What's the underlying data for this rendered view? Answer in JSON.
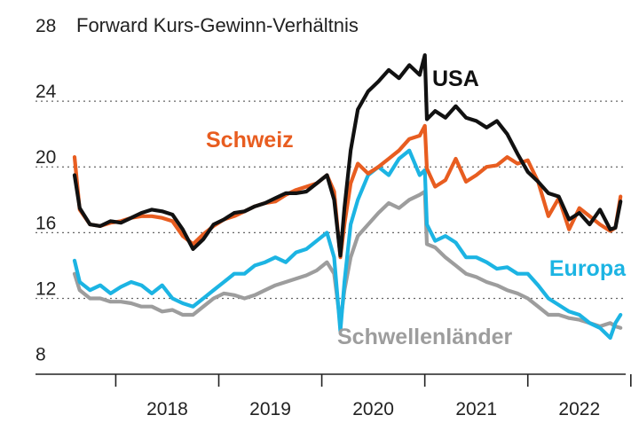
{
  "chart_data": {
    "type": "line",
    "title": "Forward Kurs-Gewinn-Verhältnis",
    "y_ticks": [
      "28",
      "24",
      "20",
      "16",
      "12",
      "8"
    ],
    "y_tick_values": [
      28,
      24,
      20,
      16,
      12,
      8
    ],
    "ylim": [
      8,
      28
    ],
    "xlim": [
      2017.6,
      2022.95
    ],
    "year_labels": [
      "2018",
      "2019",
      "2020",
      "2021",
      "2022"
    ],
    "year_label_values": [
      2018.5,
      2019.5,
      2020.5,
      2021.5,
      2022.5
    ],
    "year_boundaries": [
      2018,
      2019,
      2020,
      2021,
      2022,
      2023
    ],
    "grid": "dotted horizontal",
    "series": [
      {
        "name": "USA",
        "color": "#111111",
        "x": [
          2017.6,
          2017.65,
          2017.75,
          2017.85,
          2017.95,
          2018.05,
          2018.15,
          2018.25,
          2018.35,
          2018.45,
          2018.55,
          2018.65,
          2018.75,
          2018.85,
          2018.95,
          2019.05,
          2019.15,
          2019.25,
          2019.35,
          2019.45,
          2019.55,
          2019.65,
          2019.75,
          2019.85,
          2019.95,
          2020.05,
          2020.12,
          2020.18,
          2020.22,
          2020.28,
          2020.35,
          2020.45,
          2020.55,
          2020.65,
          2020.75,
          2020.85,
          2020.95,
          2021.0,
          2021.02,
          2021.1,
          2021.2,
          2021.3,
          2021.4,
          2021.5,
          2021.6,
          2021.7,
          2021.8,
          2021.9,
          2022.0,
          2022.1,
          2022.2,
          2022.3,
          2022.4,
          2022.5,
          2022.6,
          2022.7,
          2022.8,
          2022.85,
          2022.9
        ],
        "values": [
          19.5,
          17.5,
          16.5,
          16.4,
          16.7,
          16.6,
          16.9,
          17.2,
          17.4,
          17.3,
          17.1,
          16.2,
          15.0,
          15.6,
          16.5,
          16.8,
          17.2,
          17.3,
          17.6,
          17.8,
          18.1,
          18.4,
          18.4,
          18.5,
          19.0,
          19.5,
          18.0,
          14.6,
          17.5,
          21.0,
          23.5,
          24.6,
          25.2,
          25.9,
          25.4,
          26.2,
          25.6,
          26.8,
          22.9,
          23.4,
          23.0,
          23.7,
          23.0,
          22.8,
          22.4,
          22.8,
          22.0,
          20.8,
          19.7,
          19.1,
          18.4,
          18.2,
          16.8,
          17.2,
          16.5,
          17.4,
          16.2,
          16.3,
          17.9
        ]
      },
      {
        "name": "Schweiz",
        "color": "#e85d20",
        "x": [
          2017.6,
          2017.65,
          2017.75,
          2017.85,
          2017.95,
          2018.05,
          2018.15,
          2018.25,
          2018.35,
          2018.45,
          2018.55,
          2018.65,
          2018.75,
          2018.85,
          2018.95,
          2019.05,
          2019.15,
          2019.25,
          2019.35,
          2019.45,
          2019.55,
          2019.65,
          2019.75,
          2019.85,
          2019.95,
          2020.05,
          2020.12,
          2020.18,
          2020.22,
          2020.28,
          2020.35,
          2020.45,
          2020.55,
          2020.65,
          2020.75,
          2020.85,
          2020.95,
          2021.0,
          2021.02,
          2021.1,
          2021.2,
          2021.3,
          2021.4,
          2021.5,
          2021.6,
          2021.7,
          2021.8,
          2021.9,
          2022.0,
          2022.1,
          2022.2,
          2022.3,
          2022.4,
          2022.5,
          2022.6,
          2022.7,
          2022.8,
          2022.85,
          2022.9
        ],
        "values": [
          20.6,
          17.4,
          16.5,
          16.4,
          16.6,
          16.7,
          16.9,
          17.0,
          17.0,
          16.9,
          16.7,
          15.8,
          15.3,
          15.9,
          16.4,
          16.8,
          17.0,
          17.3,
          17.6,
          17.8,
          17.9,
          18.3,
          18.6,
          18.8,
          19.0,
          19.5,
          18.5,
          14.5,
          16.5,
          19.0,
          20.2,
          19.6,
          20.0,
          20.5,
          21.0,
          21.7,
          21.9,
          22.5,
          19.9,
          18.8,
          19.2,
          20.5,
          19.1,
          19.5,
          20.0,
          20.1,
          20.6,
          20.2,
          20.4,
          19.1,
          17.0,
          18.1,
          16.2,
          17.5,
          17.0,
          16.5,
          16.1,
          16.3,
          18.2
        ]
      },
      {
        "name": "Europa",
        "color": "#1cb4e3",
        "x": [
          2017.6,
          2017.65,
          2017.75,
          2017.85,
          2017.95,
          2018.05,
          2018.15,
          2018.25,
          2018.35,
          2018.45,
          2018.55,
          2018.65,
          2018.75,
          2018.85,
          2018.95,
          2019.05,
          2019.15,
          2019.25,
          2019.35,
          2019.45,
          2019.55,
          2019.65,
          2019.75,
          2019.85,
          2019.95,
          2020.05,
          2020.12,
          2020.18,
          2020.22,
          2020.28,
          2020.35,
          2020.45,
          2020.55,
          2020.65,
          2020.75,
          2020.85,
          2020.95,
          2021.0,
          2021.02,
          2021.1,
          2021.2,
          2021.3,
          2021.4,
          2021.5,
          2021.6,
          2021.7,
          2021.8,
          2021.9,
          2022.0,
          2022.1,
          2022.2,
          2022.3,
          2022.4,
          2022.5,
          2022.6,
          2022.7,
          2022.8,
          2022.85,
          2022.9
        ],
        "values": [
          14.3,
          13.0,
          12.5,
          12.8,
          12.3,
          12.7,
          13.0,
          12.8,
          12.3,
          12.8,
          12.0,
          11.7,
          11.5,
          12.0,
          12.5,
          13.0,
          13.5,
          13.5,
          14.0,
          14.2,
          14.5,
          14.2,
          14.8,
          15.0,
          15.5,
          16.0,
          14.5,
          10.0,
          13.0,
          16.5,
          18.0,
          19.5,
          20.0,
          19.5,
          20.5,
          21.0,
          19.5,
          19.8,
          16.5,
          15.5,
          15.8,
          15.4,
          14.5,
          14.5,
          14.2,
          13.8,
          13.9,
          13.5,
          13.5,
          12.8,
          12.0,
          11.6,
          11.2,
          11.0,
          10.5,
          10.2,
          9.6,
          10.5,
          11.0
        ]
      },
      {
        "name": "Schwellenländer",
        "color": "#9d9d9d",
        "x": [
          2017.6,
          2017.65,
          2017.75,
          2017.85,
          2017.95,
          2018.05,
          2018.15,
          2018.25,
          2018.35,
          2018.45,
          2018.55,
          2018.65,
          2018.75,
          2018.85,
          2018.95,
          2019.05,
          2019.15,
          2019.25,
          2019.35,
          2019.45,
          2019.55,
          2019.65,
          2019.75,
          2019.85,
          2019.95,
          2020.05,
          2020.12,
          2020.18,
          2020.22,
          2020.28,
          2020.35,
          2020.45,
          2020.55,
          2020.65,
          2020.75,
          2020.85,
          2020.95,
          2021.0,
          2021.02,
          2021.1,
          2021.2,
          2021.3,
          2021.4,
          2021.5,
          2021.6,
          2021.7,
          2021.8,
          2021.9,
          2022.0,
          2022.1,
          2022.2,
          2022.3,
          2022.4,
          2022.5,
          2022.6,
          2022.7,
          2022.8,
          2022.85,
          2022.9
        ],
        "values": [
          13.5,
          12.5,
          12.0,
          12.0,
          11.8,
          11.8,
          11.7,
          11.5,
          11.5,
          11.2,
          11.3,
          11.0,
          11.0,
          11.5,
          12.0,
          12.3,
          12.2,
          12.0,
          12.2,
          12.5,
          12.8,
          13.0,
          13.2,
          13.4,
          13.7,
          14.2,
          13.5,
          10.5,
          12.5,
          14.5,
          15.8,
          16.5,
          17.2,
          17.8,
          17.5,
          18.0,
          18.3,
          18.5,
          15.3,
          15.1,
          14.5,
          14.0,
          13.5,
          13.3,
          13.0,
          12.8,
          12.5,
          12.3,
          12.0,
          11.5,
          11.0,
          11.0,
          10.8,
          10.7,
          10.5,
          10.3,
          10.5,
          10.3,
          10.2
        ]
      }
    ],
    "annotations": [
      {
        "text": "USA",
        "color": "#111111"
      },
      {
        "text": "Schweiz",
        "color": "#e85d20"
      },
      {
        "text": "Europa",
        "color": "#1cb4e3"
      },
      {
        "text": "Schwellenländer",
        "color": "#9d9d9d"
      }
    ]
  }
}
